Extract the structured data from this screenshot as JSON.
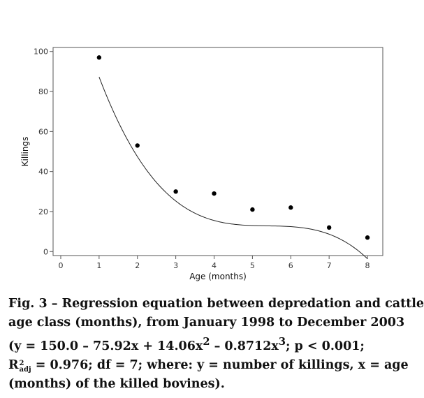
{
  "chart_data": {
    "type": "scatter",
    "xlabel": "Age (months)",
    "ylabel": "Killings",
    "xlim": [
      -0.2,
      8.4
    ],
    "ylim": [
      -2,
      102
    ],
    "x_ticks": [
      0,
      1,
      2,
      3,
      4,
      5,
      6,
      7,
      8
    ],
    "y_ticks": [
      0,
      20,
      40,
      60,
      80,
      100
    ],
    "grid": false,
    "points": [
      {
        "x": 1,
        "y": 97
      },
      {
        "x": 2,
        "y": 53
      },
      {
        "x": 3,
        "y": 30
      },
      {
        "x": 4,
        "y": 29
      },
      {
        "x": 5,
        "y": 21
      },
      {
        "x": 6,
        "y": 22
      },
      {
        "x": 7,
        "y": 12
      },
      {
        "x": 8,
        "y": 7
      }
    ],
    "fit": {
      "type": "cubic",
      "coefficients": [
        150.0,
        -75.92,
        14.06,
        -0.8712
      ],
      "x_range": [
        1,
        8
      ]
    }
  },
  "caption": {
    "line1": "Fig. 3 – Regression equation between depredation and cattle",
    "line2": "age class (months), from January 1998 to December 2003",
    "line3_a": "(y = 150.0 – 75.92x + 14.06x",
    "line3_sup1": "2",
    "line3_b": " – 0.8712x",
    "line3_sup2": "3",
    "line3_c": "; p < 0.001;",
    "line4_r": "R",
    "line4_sup": "2",
    "line4_sub": "adj",
    "line4_rest": " = 0.976; df = 7; where: y = number of killings, x = age",
    "line5": "(months) of the killed bovines)."
  }
}
